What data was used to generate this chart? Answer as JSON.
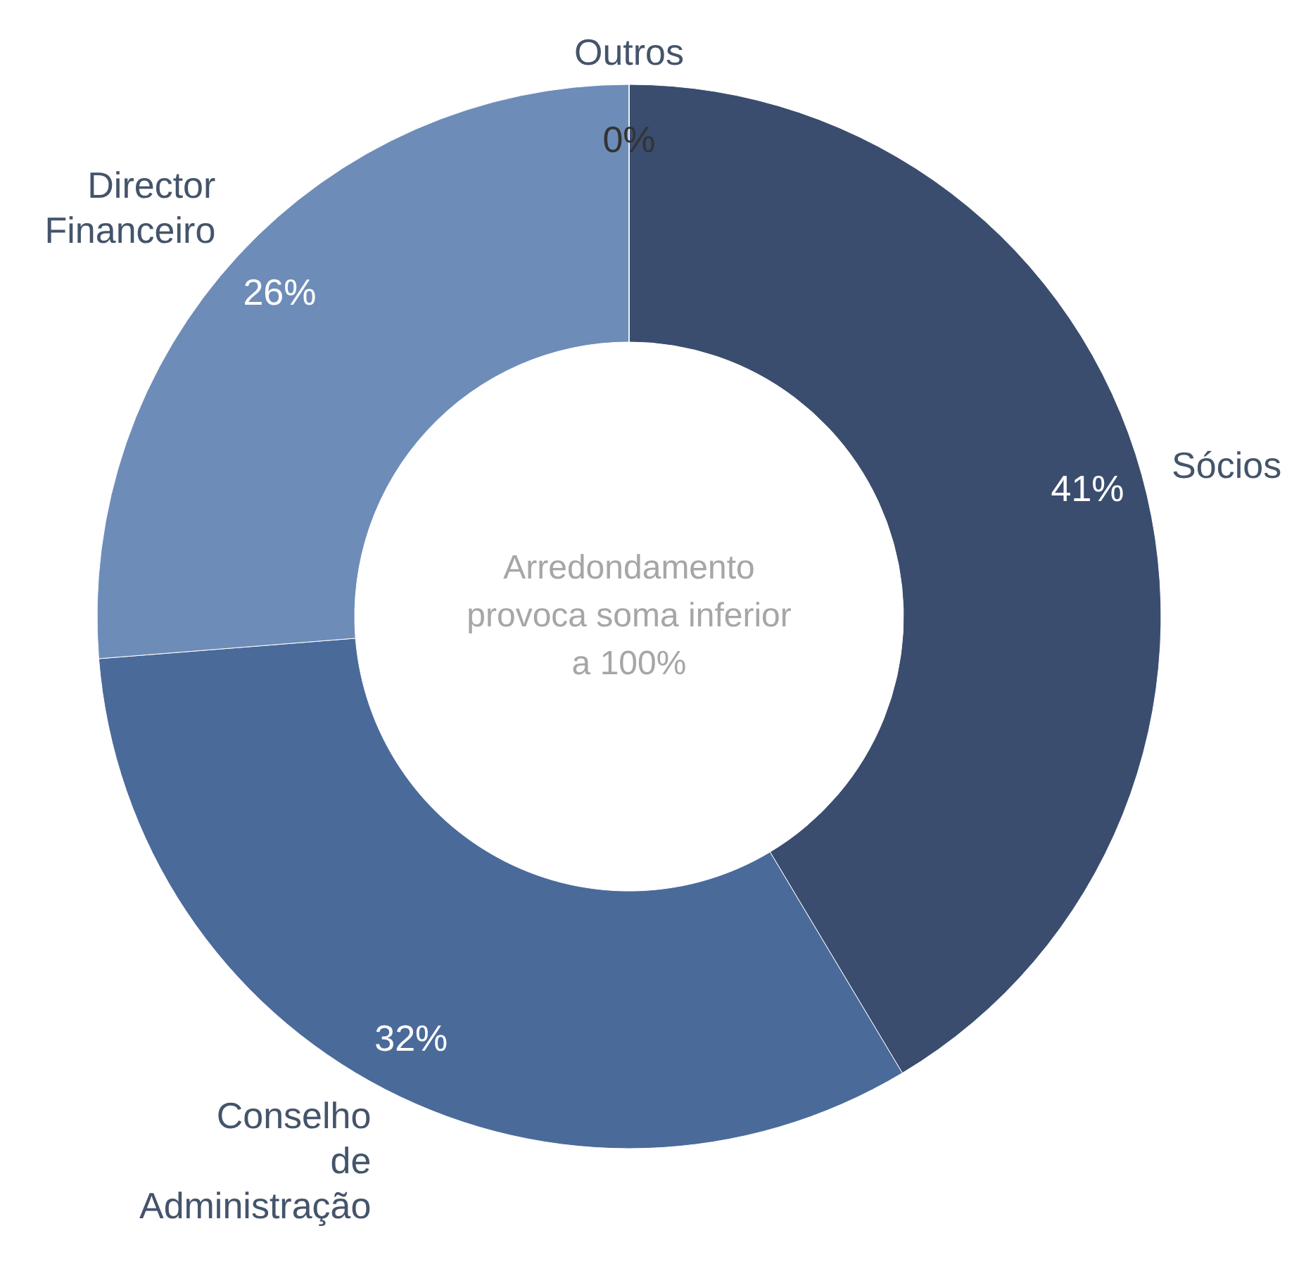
{
  "chart_data": {
    "type": "donut",
    "categories": [
      "Sócios",
      "Conselho de Administração",
      "Director Financeiro",
      "Outros"
    ],
    "values": [
      41,
      32,
      26,
      0
    ],
    "value_labels": [
      "41%",
      "32%",
      "26%",
      "0%"
    ],
    "colors": [
      "#3a4d6e",
      "#4a6a9a",
      "#6d8cb8",
      "#ffd27f"
    ],
    "annotations": [
      "Arredondamento provoca soma inferior a 100%"
    ]
  }
}
